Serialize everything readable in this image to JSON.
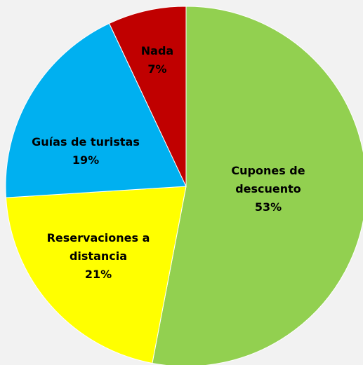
{
  "chart_data": {
    "type": "pie",
    "categories": [
      "Cupones de descuento",
      "Reservaciones a distancia",
      "Guías de turistas",
      "Nada"
    ],
    "values": [
      53,
      21,
      19,
      7
    ],
    "value_labels": [
      "53%",
      "21%",
      "19%",
      "7%"
    ],
    "colors": [
      "#92d050",
      "#ffff00",
      "#00b0f0",
      "#c00000"
    ]
  }
}
